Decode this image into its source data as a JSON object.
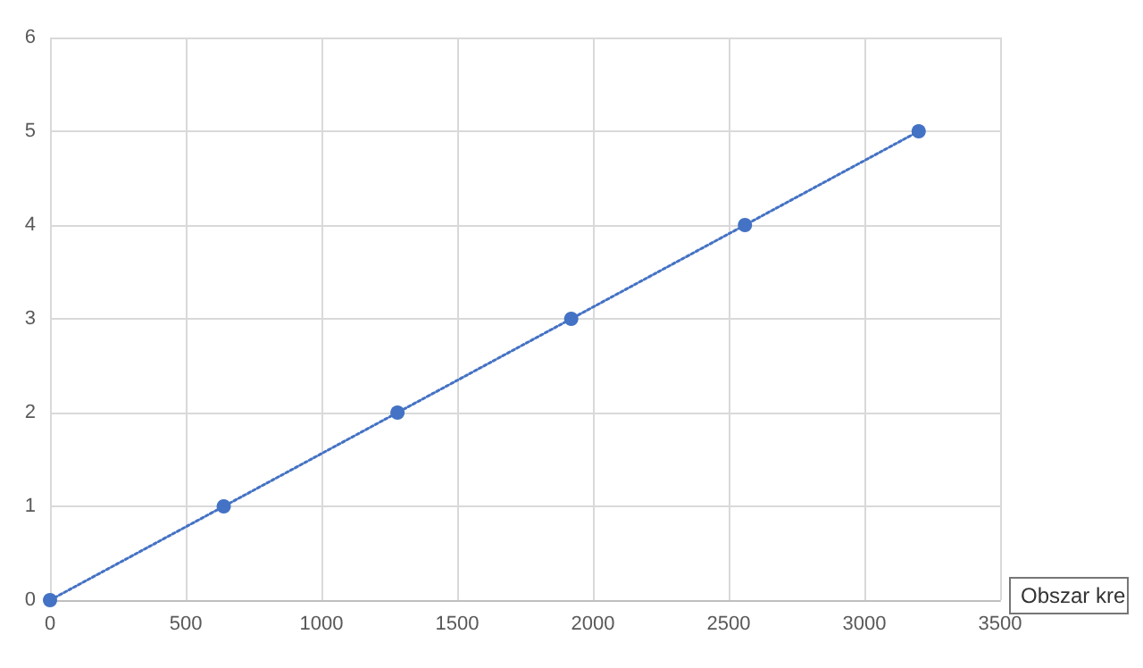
{
  "chart_data": {
    "type": "line",
    "x": [
      0,
      640,
      1280,
      1920,
      2560,
      3200
    ],
    "series": [
      {
        "color": "#4472c4",
        "values": [
          0,
          1,
          2,
          3,
          4,
          5
        ]
      }
    ],
    "xlim": [
      0,
      3500
    ],
    "xticks": [
      0,
      500,
      1000,
      1500,
      2000,
      2500,
      3000,
      3500
    ],
    "ylim": [
      0,
      6
    ],
    "yticks": [
      0,
      1,
      2,
      3,
      4,
      5,
      6
    ],
    "grid": true,
    "marker": "circle",
    "line_style": "dotted",
    "annotations": [
      "Obszar kre"
    ]
  }
}
